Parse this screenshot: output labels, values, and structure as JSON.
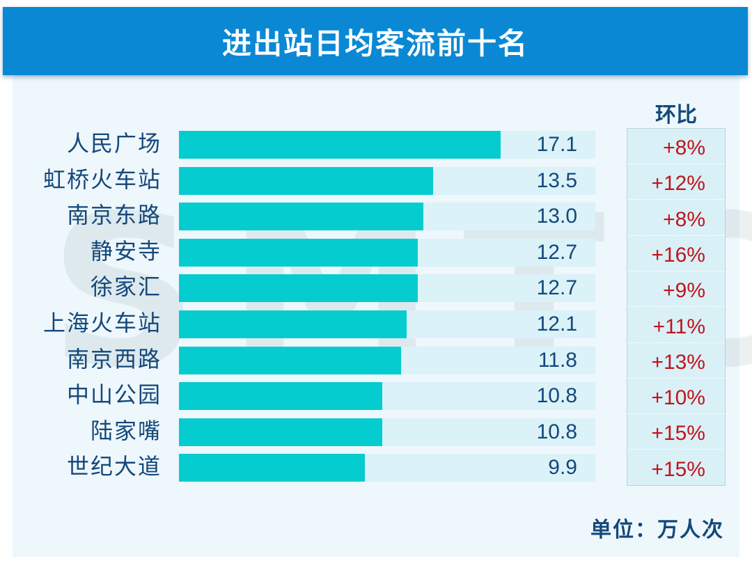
{
  "header": {
    "title": "进出站日均客流前十名"
  },
  "watermark": "SMTC",
  "change_column": {
    "title": "环比"
  },
  "unit_label": "单位：万人次",
  "colors": {
    "header": "#0a88d4",
    "bar": "#05cccf",
    "track": "#daf2f8",
    "label": "#14487a",
    "change": "#c0141c"
  },
  "rows": [
    {
      "station": "人民广场",
      "value": "17.1",
      "change": "+8%"
    },
    {
      "station": "虹桥火车站",
      "value": "13.5",
      "change": "+12%"
    },
    {
      "station": "南京东路",
      "value": "13.0",
      "change": "+8%"
    },
    {
      "station": "静安寺",
      "value": "12.7",
      "change": "+16%"
    },
    {
      "station": "徐家汇",
      "value": "12.7",
      "change": "+9%"
    },
    {
      "station": "上海火车站",
      "value": "12.1",
      "change": "+11%"
    },
    {
      "station": "南京西路",
      "value": "11.8",
      "change": "+13%"
    },
    {
      "station": "中山公园",
      "value": "10.8",
      "change": "+10%"
    },
    {
      "station": "陆家嘴",
      "value": "10.8",
      "change": "+15%"
    },
    {
      "station": "世纪大道",
      "value": "9.9",
      "change": "+15%"
    }
  ],
  "chart_data": {
    "type": "bar",
    "orientation": "horizontal",
    "title": "进出站日均客流前十名",
    "categories": [
      "人民广场",
      "虹桥火车站",
      "南京东路",
      "静安寺",
      "徐家汇",
      "上海火车站",
      "南京西路",
      "中山公园",
      "陆家嘴",
      "世纪大道"
    ],
    "series": [
      {
        "name": "进出站日均客流",
        "values": [
          17.1,
          13.5,
          13.0,
          12.7,
          12.7,
          12.1,
          11.8,
          10.8,
          10.8,
          9.9
        ]
      },
      {
        "name": "环比",
        "values": [
          "+8%",
          "+12%",
          "+8%",
          "+16%",
          "+9%",
          "+11%",
          "+13%",
          "+10%",
          "+15%",
          "+15%"
        ]
      }
    ],
    "xlabel": "",
    "ylabel": "",
    "unit": "万人次",
    "grid": false,
    "legend": null
  }
}
